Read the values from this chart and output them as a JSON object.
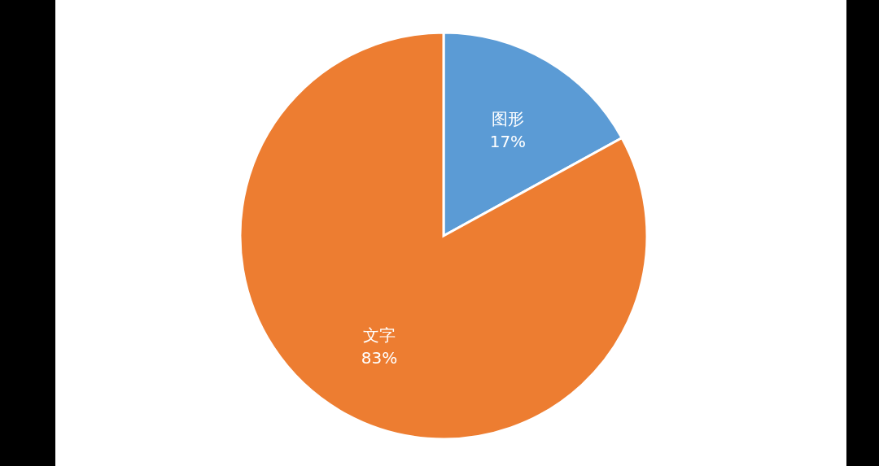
{
  "chart_data": {
    "type": "pie",
    "categories": [
      "图形",
      "文字"
    ],
    "values": [
      17,
      83
    ],
    "colors": [
      "#5b9bd5",
      "#ed7d31"
    ],
    "value_labels": [
      "17%",
      "83%"
    ]
  }
}
